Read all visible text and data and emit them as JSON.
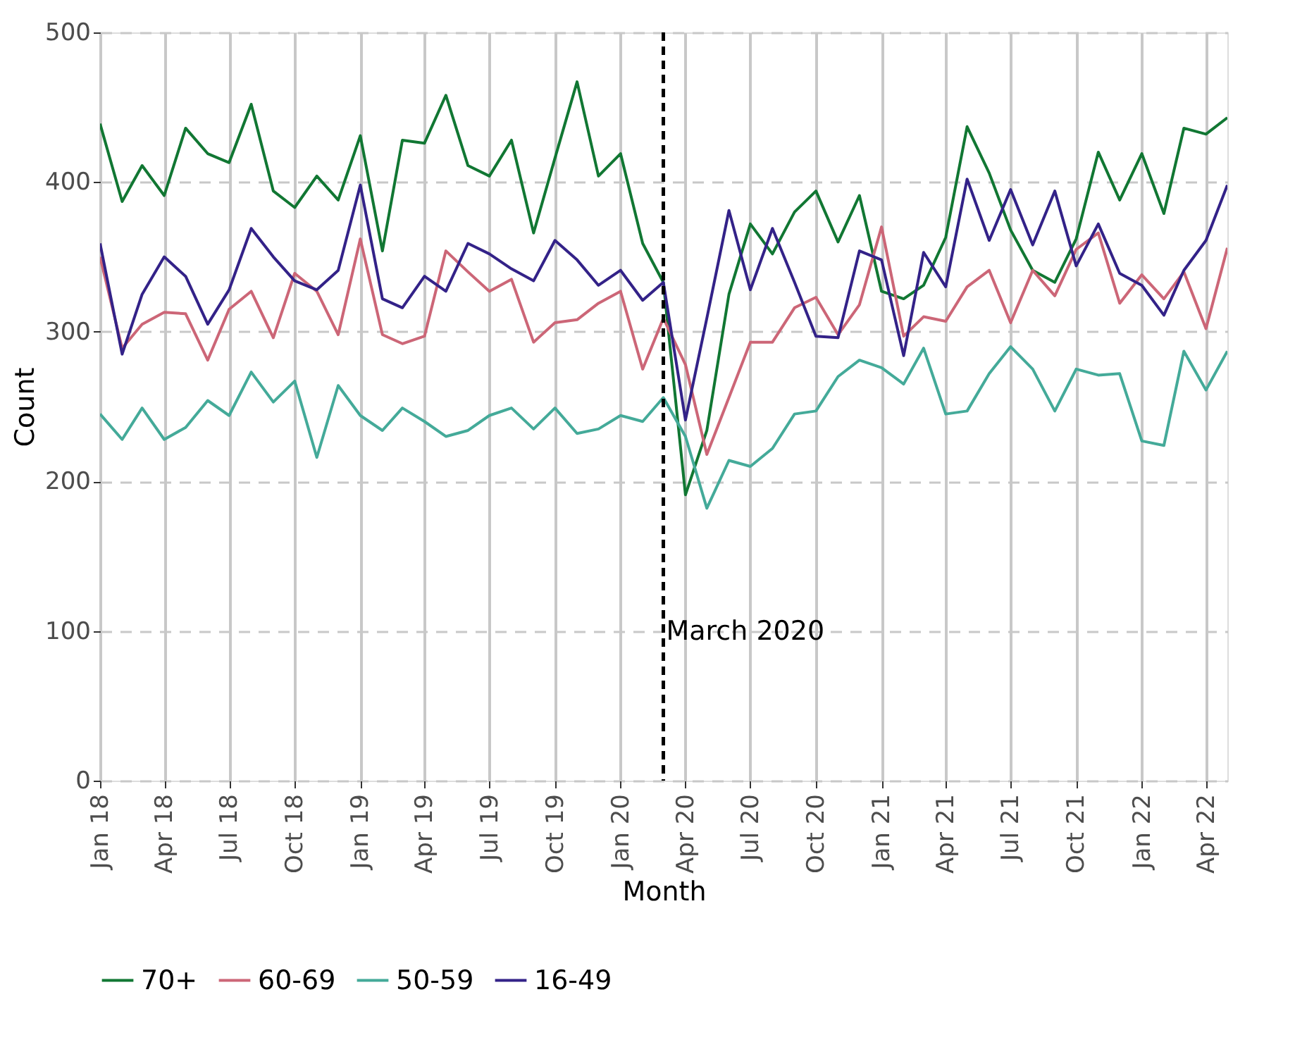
{
  "chart_data": {
    "type": "line",
    "xlabel": "Month",
    "ylabel": "Count",
    "x": [
      "2018-01",
      "2018-02",
      "2018-03",
      "2018-04",
      "2018-05",
      "2018-06",
      "2018-07",
      "2018-08",
      "2018-09",
      "2018-10",
      "2018-11",
      "2018-12",
      "2019-01",
      "2019-02",
      "2019-03",
      "2019-04",
      "2019-05",
      "2019-06",
      "2019-07",
      "2019-08",
      "2019-09",
      "2019-10",
      "2019-11",
      "2019-12",
      "2020-01",
      "2020-02",
      "2020-03",
      "2020-04",
      "2020-05",
      "2020-06",
      "2020-07",
      "2020-08",
      "2020-09",
      "2020-10",
      "2020-11",
      "2020-12",
      "2021-01",
      "2021-02",
      "2021-03",
      "2021-04",
      "2021-05",
      "2021-06",
      "2021-07",
      "2021-08",
      "2021-09",
      "2021-10",
      "2021-11",
      "2021-12",
      "2022-01",
      "2022-02",
      "2022-03",
      "2022-04",
      "2022-05"
    ],
    "series": [
      {
        "name": "70+",
        "color": "#117733",
        "values": [
          439,
          387,
          411,
          391,
          436,
          419,
          413,
          452,
          394,
          383,
          404,
          388,
          431,
          354,
          428,
          426,
          458,
          411,
          404,
          428,
          366,
          416,
          467,
          404,
          419,
          359,
          333,
          191,
          234,
          325,
          372,
          352,
          380,
          394,
          360,
          391,
          327,
          322,
          331,
          363,
          437,
          406,
          368,
          341,
          333,
          362,
          420,
          388,
          419,
          379,
          436,
          432,
          443
        ]
      },
      {
        "name": "60-69",
        "color": "#cc6677",
        "values": [
          350,
          289,
          305,
          313,
          312,
          281,
          315,
          327,
          296,
          339,
          327,
          298,
          362,
          298,
          292,
          297,
          354,
          340,
          327,
          335,
          293,
          306,
          308,
          319,
          327,
          275,
          309,
          278,
          218,
          256,
          293,
          293,
          316,
          323,
          298,
          318,
          370,
          297,
          310,
          307,
          330,
          341,
          306,
          341,
          324,
          355,
          366,
          319,
          338,
          322,
          340,
          302,
          356
        ]
      },
      {
        "name": "50-59",
        "color": "#44aa99",
        "values": [
          245,
          228,
          249,
          228,
          236,
          254,
          244,
          273,
          253,
          267,
          216,
          264,
          244,
          234,
          249,
          240,
          230,
          234,
          244,
          249,
          235,
          249,
          232,
          235,
          244,
          240,
          256,
          230,
          182,
          214,
          210,
          222,
          245,
          247,
          270,
          281,
          276,
          265,
          289,
          245,
          247,
          272,
          290,
          275,
          247,
          275,
          271,
          272,
          227,
          224,
          287,
          261,
          287
        ]
      },
      {
        "name": "16-49",
        "color": "#332288",
        "values": [
          359,
          285,
          325,
          350,
          337,
          305,
          328,
          369,
          350,
          334,
          328,
          341,
          398,
          322,
          316,
          337,
          327,
          359,
          352,
          342,
          334,
          361,
          348,
          331,
          341,
          321,
          333,
          241,
          309,
          381,
          328,
          369,
          333,
          297,
          296,
          354,
          348,
          284,
          353,
          330,
          402,
          361,
          395,
          358,
          394,
          344,
          372,
          339,
          331,
          311,
          341,
          361,
          398
        ]
      }
    ],
    "xlim": [
      "2018-01",
      "2022-05"
    ],
    "xticks": [
      {
        "value": "2018-01",
        "label": "Jan 18"
      },
      {
        "value": "2018-04",
        "label": "Apr 18"
      },
      {
        "value": "2018-07",
        "label": "Jul 18"
      },
      {
        "value": "2018-10",
        "label": "Oct 18"
      },
      {
        "value": "2019-01",
        "label": "Jan 19"
      },
      {
        "value": "2019-04",
        "label": "Apr 19"
      },
      {
        "value": "2019-07",
        "label": "Jul 19"
      },
      {
        "value": "2019-10",
        "label": "Oct 19"
      },
      {
        "value": "2020-01",
        "label": "Jan 20"
      },
      {
        "value": "2020-04",
        "label": "Apr 20"
      },
      {
        "value": "2020-07",
        "label": "Jul 20"
      },
      {
        "value": "2020-10",
        "label": "Oct 20"
      },
      {
        "value": "2021-01",
        "label": "Jan 21"
      },
      {
        "value": "2021-04",
        "label": "Apr 21"
      },
      {
        "value": "2021-07",
        "label": "Jul 21"
      },
      {
        "value": "2021-10",
        "label": "Oct 21"
      },
      {
        "value": "2022-01",
        "label": "Jan 22"
      },
      {
        "value": "2022-04",
        "label": "Apr 22"
      }
    ],
    "ylim": [
      0,
      500
    ],
    "yticks": [
      0,
      100,
      200,
      300,
      400,
      500
    ],
    "ref_lines": [
      {
        "axis": "x",
        "value": "2020-03",
        "label": "March 2020",
        "color": "#000000",
        "line_style": "dashed"
      }
    ],
    "grid": true,
    "legend": "bottom",
    "marker": "none",
    "line_style": "solid"
  }
}
